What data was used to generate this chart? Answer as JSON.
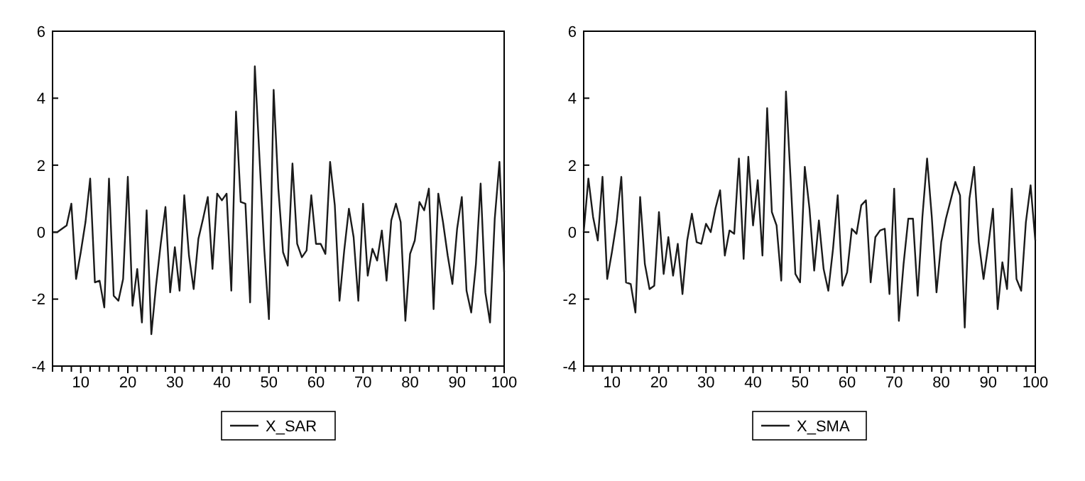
{
  "chart_data": [
    {
      "type": "line",
      "x": [
        4,
        5,
        6,
        7,
        8,
        9,
        10,
        11,
        12,
        13,
        14,
        15,
        16,
        17,
        18,
        19,
        20,
        21,
        22,
        23,
        24,
        25,
        26,
        27,
        28,
        29,
        30,
        31,
        32,
        33,
        34,
        35,
        36,
        37,
        38,
        39,
        40,
        41,
        42,
        43,
        44,
        45,
        46,
        47,
        48,
        49,
        50,
        51,
        52,
        53,
        54,
        55,
        56,
        57,
        58,
        59,
        60,
        61,
        62,
        63,
        64,
        65,
        66,
        67,
        68,
        69,
        70,
        71,
        72,
        73,
        74,
        75,
        76,
        77,
        78,
        79,
        80,
        81,
        82,
        83,
        84,
        85,
        86,
        87,
        88,
        89,
        90,
        91,
        92,
        93,
        94,
        95,
        96,
        97,
        98,
        99,
        100
      ],
      "series": [
        {
          "name": "X_SAR",
          "color": "#1a1a1a",
          "values": [
            0.0,
            0.0,
            0.1,
            0.2,
            0.85,
            -1.4,
            -0.6,
            0.3,
            1.6,
            -1.5,
            -1.45,
            -2.25,
            1.6,
            -1.9,
            -2.05,
            -1.4,
            1.65,
            -2.2,
            -1.1,
            -2.7,
            0.65,
            -3.05,
            -1.6,
            -0.35,
            0.75,
            -1.8,
            -0.45,
            -1.75,
            1.1,
            -0.7,
            -1.7,
            -0.2,
            0.4,
            1.05,
            -1.1,
            1.15,
            0.95,
            1.15,
            -1.75,
            3.6,
            0.9,
            0.85,
            -2.1,
            4.95,
            2.2,
            -0.5,
            -2.6,
            4.25,
            1.3,
            -0.6,
            -1.0,
            2.05,
            -0.35,
            -0.75,
            -0.55,
            1.1,
            -0.35,
            -0.35,
            -0.65,
            2.1,
            0.8,
            -2.05,
            -0.55,
            0.7,
            -0.15,
            -2.05,
            0.85,
            -1.3,
            -0.5,
            -0.85,
            0.05,
            -1.45,
            0.35,
            0.85,
            0.3,
            -2.65,
            -0.65,
            -0.25,
            0.9,
            0.65,
            1.3,
            -2.3,
            1.15,
            0.3,
            -0.7,
            -1.55,
            0.1,
            1.05,
            -1.75,
            -2.4,
            -0.95,
            1.45,
            -1.8,
            -2.7,
            0.4,
            2.1,
            -1.2
          ]
        }
      ],
      "xlim": [
        4,
        100
      ],
      "ylim": [
        -4,
        6
      ],
      "xticks": [
        {
          "value": 4,
          "label": null
        },
        {
          "value": 6,
          "label": null
        },
        {
          "value": 8,
          "label": null
        },
        10,
        {
          "value": 12,
          "label": null
        },
        {
          "value": 14,
          "label": null
        },
        {
          "value": 16,
          "label": null
        },
        {
          "value": 18,
          "label": null
        },
        20,
        {
          "value": 22,
          "label": null
        },
        {
          "value": 24,
          "label": null
        },
        {
          "value": 26,
          "label": null
        },
        {
          "value": 28,
          "label": null
        },
        30,
        {
          "value": 32,
          "label": null
        },
        {
          "value": 34,
          "label": null
        },
        {
          "value": 36,
          "label": null
        },
        {
          "value": 38,
          "label": null
        },
        40,
        {
          "value": 42,
          "label": null
        },
        {
          "value": 44,
          "label": null
        },
        {
          "value": 46,
          "label": null
        },
        {
          "value": 48,
          "label": null
        },
        50,
        {
          "value": 52,
          "label": null
        },
        {
          "value": 54,
          "label": null
        },
        {
          "value": 56,
          "label": null
        },
        {
          "value": 58,
          "label": null
        },
        60,
        {
          "value": 62,
          "label": null
        },
        {
          "value": 64,
          "label": null
        },
        {
          "value": 66,
          "label": null
        },
        {
          "value": 68,
          "label": null
        },
        70,
        {
          "value": 72,
          "label": null
        },
        {
          "value": 74,
          "label": null
        },
        {
          "value": 76,
          "label": null
        },
        {
          "value": 78,
          "label": null
        },
        80,
        {
          "value": 82,
          "label": null
        },
        {
          "value": 84,
          "label": null
        },
        {
          "value": 86,
          "label": null
        },
        {
          "value": 88,
          "label": null
        },
        90,
        {
          "value": 92,
          "label": null
        },
        {
          "value": 94,
          "label": null
        },
        {
          "value": 96,
          "label": null
        },
        {
          "value": 98,
          "label": null
        },
        100
      ],
      "yticks": [
        -4,
        -2,
        0,
        2,
        4,
        6
      ],
      "grid": false,
      "legend": "bottom",
      "marker": "none",
      "line_style": "solid"
    },
    {
      "type": "line",
      "x": [
        4,
        5,
        6,
        7,
        8,
        9,
        10,
        11,
        12,
        13,
        14,
        15,
        16,
        17,
        18,
        19,
        20,
        21,
        22,
        23,
        24,
        25,
        26,
        27,
        28,
        29,
        30,
        31,
        32,
        33,
        34,
        35,
        36,
        37,
        38,
        39,
        40,
        41,
        42,
        43,
        44,
        45,
        46,
        47,
        48,
        49,
        50,
        51,
        52,
        53,
        54,
        55,
        56,
        57,
        58,
        59,
        60,
        61,
        62,
        63,
        64,
        65,
        66,
        67,
        68,
        69,
        70,
        71,
        72,
        73,
        74,
        75,
        76,
        77,
        78,
        79,
        80,
        81,
        82,
        83,
        84,
        85,
        86,
        87,
        88,
        89,
        90,
        91,
        92,
        93,
        94,
        95,
        96,
        97,
        98,
        99,
        100
      ],
      "series": [
        {
          "name": "X_SMA",
          "color": "#1a1a1a",
          "values": [
            0.0,
            1.6,
            0.45,
            -0.25,
            1.65,
            -1.4,
            -0.6,
            0.3,
            1.65,
            -1.5,
            -1.55,
            -2.4,
            1.05,
            -0.95,
            -1.7,
            -1.6,
            0.6,
            -1.25,
            -0.15,
            -1.3,
            -0.35,
            -1.85,
            -0.25,
            0.55,
            -0.3,
            -0.35,
            0.25,
            0.0,
            0.7,
            1.25,
            -0.7,
            0.05,
            -0.05,
            2.2,
            -0.8,
            2.25,
            0.2,
            1.55,
            -0.7,
            3.7,
            0.6,
            0.2,
            -1.45,
            4.2,
            1.55,
            -1.25,
            -1.5,
            1.95,
            0.7,
            -1.15,
            0.35,
            -1.1,
            -1.75,
            -0.5,
            1.1,
            -1.6,
            -1.2,
            0.1,
            -0.05,
            0.8,
            0.95,
            -1.5,
            -0.15,
            0.05,
            0.1,
            -1.85,
            1.3,
            -2.65,
            -0.95,
            0.4,
            0.4,
            -1.9,
            0.45,
            2.2,
            0.45,
            -1.8,
            -0.3,
            0.4,
            0.95,
            1.5,
            1.1,
            -2.85,
            1.0,
            1.95,
            -0.3,
            -1.4,
            -0.4,
            0.7,
            -2.3,
            -0.9,
            -1.7,
            1.3,
            -1.4,
            -1.75,
            0.3,
            1.4,
            -0.25
          ]
        }
      ],
      "xlim": [
        4,
        100
      ],
      "ylim": [
        -4,
        6
      ],
      "xticks": [
        {
          "value": 4,
          "label": null
        },
        {
          "value": 6,
          "label": null
        },
        {
          "value": 8,
          "label": null
        },
        10,
        {
          "value": 12,
          "label": null
        },
        {
          "value": 14,
          "label": null
        },
        {
          "value": 16,
          "label": null
        },
        {
          "value": 18,
          "label": null
        },
        20,
        {
          "value": 22,
          "label": null
        },
        {
          "value": 24,
          "label": null
        },
        {
          "value": 26,
          "label": null
        },
        {
          "value": 28,
          "label": null
        },
        30,
        {
          "value": 32,
          "label": null
        },
        {
          "value": 34,
          "label": null
        },
        {
          "value": 36,
          "label": null
        },
        {
          "value": 38,
          "label": null
        },
        40,
        {
          "value": 42,
          "label": null
        },
        {
          "value": 44,
          "label": null
        },
        {
          "value": 46,
          "label": null
        },
        {
          "value": 48,
          "label": null
        },
        50,
        {
          "value": 52,
          "label": null
        },
        {
          "value": 54,
          "label": null
        },
        {
          "value": 56,
          "label": null
        },
        {
          "value": 58,
          "label": null
        },
        60,
        {
          "value": 62,
          "label": null
        },
        {
          "value": 64,
          "label": null
        },
        {
          "value": 66,
          "label": null
        },
        {
          "value": 68,
          "label": null
        },
        70,
        {
          "value": 72,
          "label": null
        },
        {
          "value": 74,
          "label": null
        },
        {
          "value": 76,
          "label": null
        },
        {
          "value": 78,
          "label": null
        },
        80,
        {
          "value": 82,
          "label": null
        },
        {
          "value": 84,
          "label": null
        },
        {
          "value": 86,
          "label": null
        },
        {
          "value": 88,
          "label": null
        },
        90,
        {
          "value": 92,
          "label": null
        },
        {
          "value": 94,
          "label": null
        },
        {
          "value": 96,
          "label": null
        },
        {
          "value": 98,
          "label": null
        },
        100
      ],
      "yticks": [
        -4,
        -2,
        0,
        2,
        4,
        6
      ],
      "grid": false,
      "legend": "bottom",
      "marker": "none",
      "line_style": "solid"
    }
  ]
}
